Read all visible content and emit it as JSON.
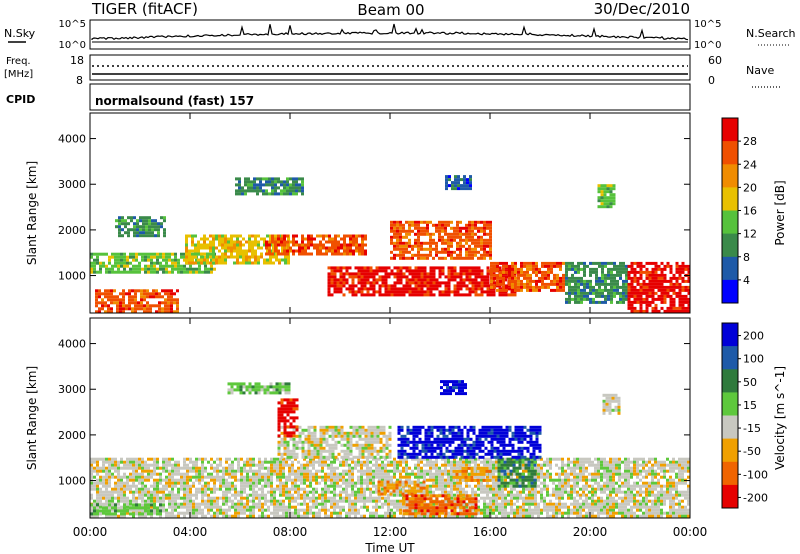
{
  "header": {
    "title": "TIGER (fitACF)",
    "beam": "Beam 00",
    "date": "30/Dec/2010"
  },
  "top_panels": {
    "nsky_label": "N.Sky",
    "nsky_ticks": [
      "10^5",
      "10^0"
    ],
    "nsearch_label": "N.Search",
    "nsearch_ticks": [
      "10^5",
      "10^0"
    ],
    "freq_label": "Freq.",
    "freq_unit": "[MHz]",
    "freq_ticks": [
      "18",
      "8"
    ],
    "nave_label": "Nave",
    "nave_ticks": [
      "60",
      "0"
    ],
    "cpid_label": "CPID",
    "cpid_value": "normalsound (fast) 157"
  },
  "chart_data": [
    {
      "type": "heatmap",
      "name": "power",
      "ylabel": "Slant Range [km]",
      "ylim": [
        180,
        4560
      ],
      "yticks": [
        1000,
        2000,
        3000,
        4000
      ],
      "xlim": [
        0,
        24
      ],
      "colorbar": {
        "label": "Power [dB]",
        "range": [
          0,
          32
        ],
        "ticks": [
          "4",
          "8",
          "12",
          "16",
          "20",
          "24",
          "28"
        ],
        "colors": [
          "#0000ff",
          "#1e5aa8",
          "#3a8a4a",
          "#56c23c",
          "#e8c000",
          "#f08c00",
          "#f05000",
          "#e60000"
        ]
      },
      "regions": [
        {
          "t0": 0.2,
          "t1": 3.5,
          "r0": 200,
          "r1": 700,
          "level": 6
        },
        {
          "t0": 0.0,
          "t1": 5.0,
          "r0": 1100,
          "r1": 1500,
          "level": 3
        },
        {
          "t0": 3.8,
          "t1": 8.0,
          "r0": 1300,
          "r1": 1900,
          "level": 4
        },
        {
          "t0": 7.0,
          "t1": 11.0,
          "r0": 1500,
          "r1": 1900,
          "level": 6
        },
        {
          "t0": 9.5,
          "t1": 17.0,
          "r0": 600,
          "r1": 1200,
          "level": 7
        },
        {
          "t0": 12.0,
          "t1": 16.0,
          "r0": 1400,
          "r1": 2200,
          "level": 6
        },
        {
          "t0": 16.0,
          "t1": 19.0,
          "r0": 700,
          "r1": 1300,
          "level": 6
        },
        {
          "t0": 19.0,
          "t1": 21.5,
          "r0": 400,
          "r1": 1300,
          "level": 2
        },
        {
          "t0": 21.5,
          "t1": 24.0,
          "r0": 200,
          "r1": 1300,
          "level": 7
        },
        {
          "t0": 5.8,
          "t1": 8.5,
          "r0": 2800,
          "r1": 3150,
          "level": 2
        },
        {
          "t0": 1.0,
          "t1": 3.0,
          "r0": 1900,
          "r1": 2300,
          "level": 2
        },
        {
          "t0": 14.2,
          "t1": 15.2,
          "r0": 2900,
          "r1": 3200,
          "level": 1
        },
        {
          "t0": 20.3,
          "t1": 21.0,
          "r0": 2500,
          "r1": 3000,
          "level": 3
        }
      ]
    },
    {
      "type": "heatmap",
      "name": "velocity",
      "ylabel": "Slant Range [km]",
      "xlabel": "Time UT",
      "xticks": [
        "00:00",
        "04:00",
        "08:00",
        "12:00",
        "16:00",
        "20:00",
        "00:00"
      ],
      "ylim": [
        180,
        4560
      ],
      "yticks": [
        1000,
        2000,
        3000,
        4000
      ],
      "xlim": [
        0,
        24
      ],
      "colorbar": {
        "label": "Velocity [m s^-1]",
        "ticks": [
          "200",
          "100",
          "50",
          "15",
          "-15",
          "-50",
          "-100",
          "-200"
        ],
        "colors": [
          "#0000d8",
          "#1e5aa8",
          "#2f7a3c",
          "#5ec83c",
          "#c8c8c0",
          "#f0a000",
          "#f06400",
          "#e60000"
        ]
      },
      "regions": [
        {
          "t0": 0.0,
          "t1": 24.0,
          "r0": 250,
          "r1": 1500,
          "level": 4
        },
        {
          "t0": 0.0,
          "t1": 3.0,
          "r0": 250,
          "r1": 500,
          "level": 3
        },
        {
          "t0": 11.5,
          "t1": 13.5,
          "r0": 700,
          "r1": 1000,
          "level": 5
        },
        {
          "t0": 12.5,
          "t1": 15.5,
          "r0": 300,
          "r1": 700,
          "level": 6
        },
        {
          "t0": 14.5,
          "t1": 16.0,
          "r0": 1000,
          "r1": 1300,
          "level": 5
        },
        {
          "t0": 16.3,
          "t1": 17.8,
          "r0": 900,
          "r1": 1500,
          "level": 2
        },
        {
          "t0": 12.3,
          "t1": 18.0,
          "r0": 1500,
          "r1": 2200,
          "level": 0
        },
        {
          "t0": 7.5,
          "t1": 12.0,
          "r0": 1500,
          "r1": 2200,
          "level": 4
        },
        {
          "t0": 7.5,
          "t1": 8.3,
          "r0": 2000,
          "r1": 2800,
          "level": 7
        },
        {
          "t0": 5.5,
          "t1": 8.0,
          "r0": 2900,
          "r1": 3150,
          "level": 3
        },
        {
          "t0": 14.0,
          "t1": 15.0,
          "r0": 2900,
          "r1": 3200,
          "level": 0
        },
        {
          "t0": 20.5,
          "t1": 21.2,
          "r0": 2500,
          "r1": 2900,
          "level": 4
        }
      ]
    }
  ]
}
